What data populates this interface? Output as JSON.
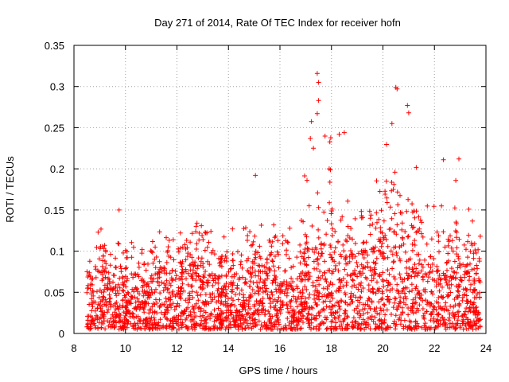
{
  "chart_data": {
    "type": "scatter",
    "title": "Day 271 of 2014, Rate Of TEC Index for receiver hofn",
    "xlabel": "GPS time / hours",
    "ylabel": "ROTI / TECUs",
    "xlim": [
      8,
      24
    ],
    "ylim": [
      0,
      0.35
    ],
    "x_ticks": [
      8,
      10,
      12,
      14,
      16,
      18,
      20,
      22,
      24
    ],
    "y_ticks": [
      0,
      0.05,
      0.1,
      0.15,
      0.2,
      0.25,
      0.3,
      0.35
    ],
    "x_tick_labels": [
      "8",
      "10",
      "12",
      "14",
      "16",
      "18",
      "20",
      "22",
      "24"
    ],
    "y_tick_labels": [
      "0",
      "0.05",
      "0.1",
      "0.15",
      "0.2",
      "0.25",
      "0.3",
      "0.35"
    ],
    "grid": true,
    "marker": "+",
    "color": "#ff0000",
    "x_range_of_data": [
      8.5,
      23.8
    ],
    "envelope": {
      "x": [
        8.5,
        9.0,
        9.5,
        10.0,
        10.5,
        11.0,
        11.5,
        12.0,
        12.5,
        13.0,
        13.5,
        14.0,
        14.5,
        15.0,
        15.5,
        16.0,
        16.5,
        17.0,
        17.5,
        18.0,
        18.5,
        19.0,
        19.5,
        20.0,
        20.5,
        21.0,
        21.5,
        22.0,
        22.5,
        23.0,
        23.5,
        23.8
      ],
      "y_max": [
        0.08,
        0.13,
        0.1,
        0.14,
        0.11,
        0.13,
        0.14,
        0.12,
        0.13,
        0.14,
        0.12,
        0.13,
        0.13,
        0.19,
        0.14,
        0.14,
        0.13,
        0.22,
        0.32,
        0.24,
        0.17,
        0.15,
        0.18,
        0.21,
        0.3,
        0.28,
        0.16,
        0.17,
        0.15,
        0.21,
        0.14,
        0.13
      ],
      "y_typ": [
        0.04,
        0.06,
        0.04,
        0.05,
        0.04,
        0.05,
        0.06,
        0.05,
        0.06,
        0.07,
        0.05,
        0.05,
        0.05,
        0.07,
        0.06,
        0.06,
        0.05,
        0.08,
        0.09,
        0.08,
        0.07,
        0.07,
        0.08,
        0.09,
        0.1,
        0.09,
        0.07,
        0.07,
        0.06,
        0.07,
        0.06,
        0.05
      ]
    },
    "notable_points": [
      {
        "x": 9.75,
        "y": 0.15
      },
      {
        "x": 17.45,
        "y": 0.316
      },
      {
        "x": 17.5,
        "y": 0.305
      },
      {
        "x": 17.5,
        "y": 0.283
      },
      {
        "x": 17.45,
        "y": 0.267
      },
      {
        "x": 17.3,
        "y": 0.225
      },
      {
        "x": 18.3,
        "y": 0.242
      },
      {
        "x": 18.5,
        "y": 0.244
      },
      {
        "x": 20.5,
        "y": 0.299
      },
      {
        "x": 20.55,
        "y": 0.297
      },
      {
        "x": 20.95,
        "y": 0.277
      },
      {
        "x": 21.0,
        "y": 0.268
      },
      {
        "x": 20.35,
        "y": 0.255
      },
      {
        "x": 22.35,
        "y": 0.211
      },
      {
        "x": 22.95,
        "y": 0.212
      },
      {
        "x": 15.05,
        "y": 0.192
      },
      {
        "x": 17.05,
        "y": 0.186
      }
    ]
  }
}
